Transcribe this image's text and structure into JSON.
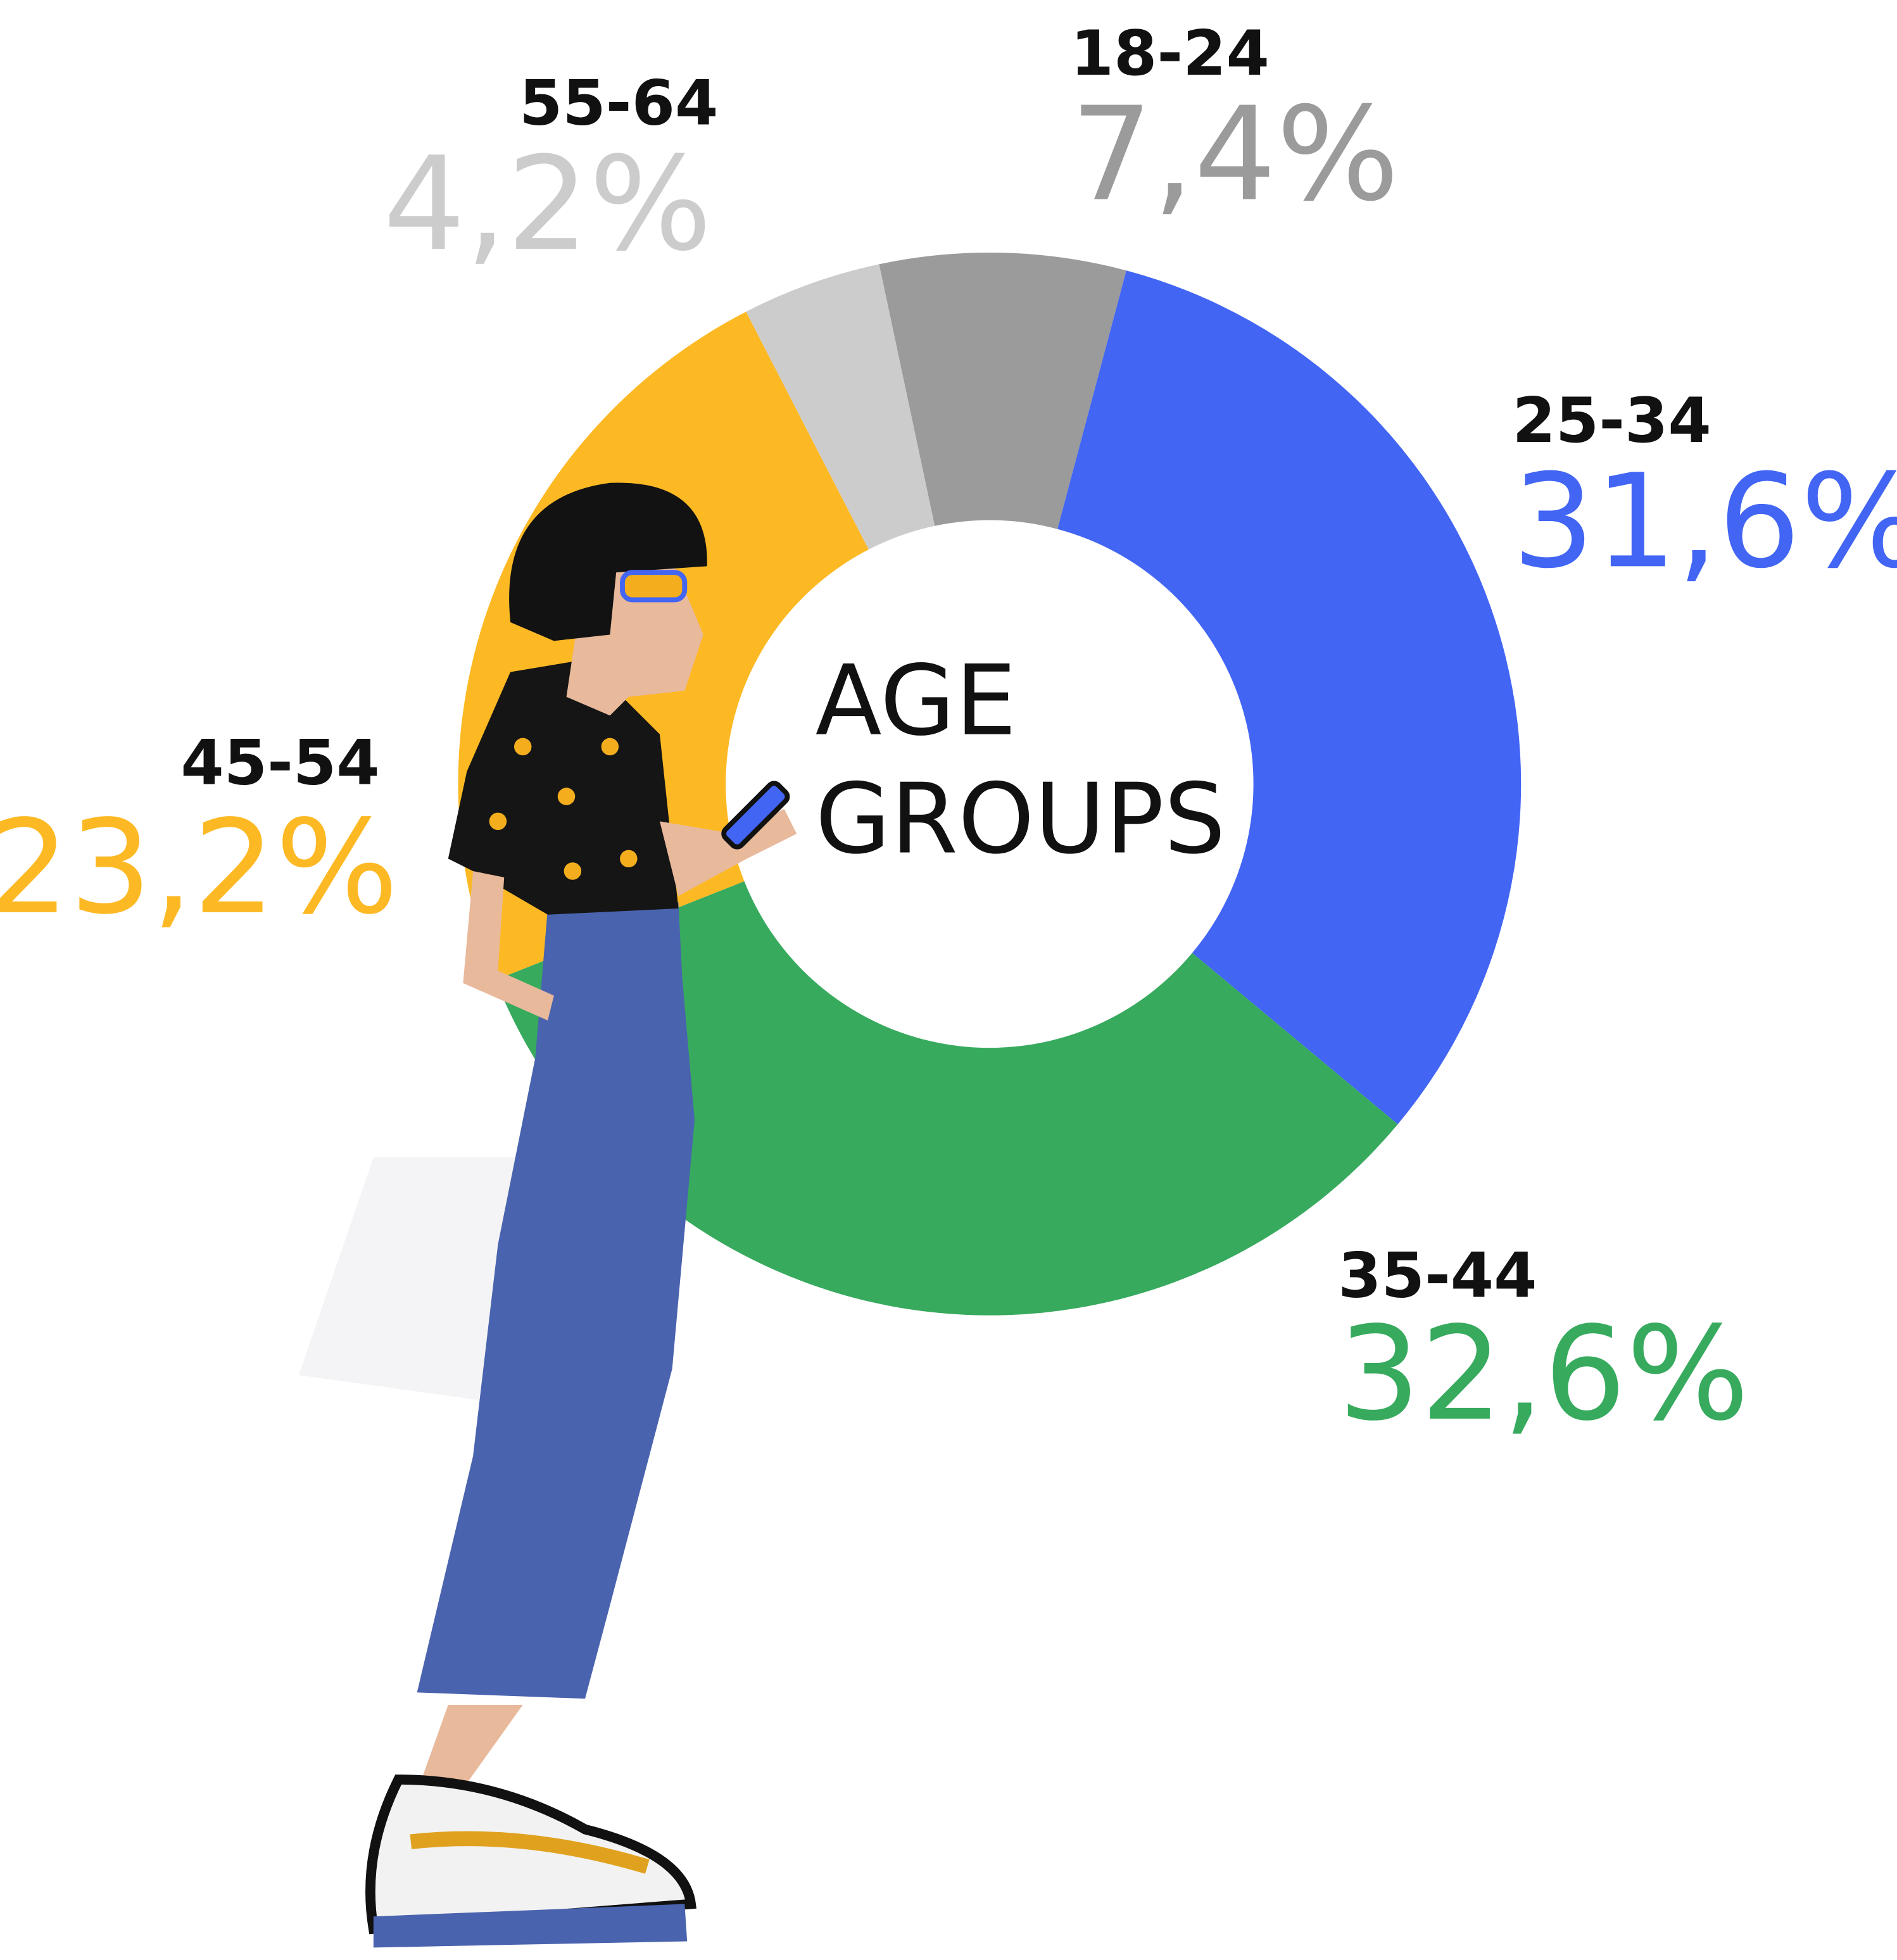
{
  "chart_data": {
    "type": "pie",
    "center_text": [
      "AGE",
      "GROUPS"
    ],
    "categories": [
      "18-24",
      "25-34",
      "35-44",
      "45-54",
      "55-64"
    ],
    "values": [
      7.4,
      31.6,
      32.6,
      23.2,
      4.2
    ],
    "value_labels": [
      "7,4%",
      "31,6%",
      "32,6%",
      "23,2%",
      "4,2%"
    ],
    "colors": [
      "#9b9b9b",
      "#4265f4",
      "#37aa5e",
      "#fdb924",
      "#cccccc"
    ]
  }
}
